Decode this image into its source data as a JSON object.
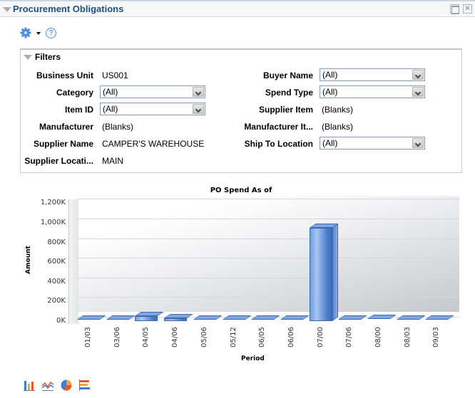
{
  "header": {
    "title": "Procurement Obligations",
    "maximize_icon": "maximize-icon",
    "close_icon": "close-icon"
  },
  "toolbar": {
    "gear_icon": "gear-icon",
    "dropdown_icon": "caret-down-icon",
    "help_label": "?"
  },
  "filters": {
    "title": "Filters",
    "left": [
      {
        "label": "Business Unit",
        "type": "text",
        "value": "US001"
      },
      {
        "label": "Category",
        "type": "select",
        "value": "(All)"
      },
      {
        "label": "Item ID",
        "type": "select",
        "value": "(All)"
      },
      {
        "label": "Manufacturer",
        "type": "text",
        "value": "(Blanks)"
      },
      {
        "label": "Supplier Name",
        "type": "text",
        "value": "CAMPER'S WAREHOUSE"
      },
      {
        "label": "Supplier Locati...",
        "type": "text",
        "value": "MAIN"
      }
    ],
    "right": [
      {
        "label": "Buyer Name",
        "type": "select",
        "value": "(All)"
      },
      {
        "label": "Spend Type",
        "type": "select",
        "value": "(All)"
      },
      {
        "label": "Supplier Item",
        "type": "text",
        "value": "(Blanks)"
      },
      {
        "label": "Manufacturer It...",
        "type": "text",
        "value": "(Blanks)"
      },
      {
        "label": "Ship To Location",
        "type": "select",
        "value": "(All)"
      }
    ]
  },
  "chart_data": {
    "type": "bar",
    "title": "PO Spend As of",
    "xlabel": "Period",
    "ylabel": "Amount",
    "categories": [
      "01/03",
      "03/06",
      "04/05",
      "04/06",
      "05/06",
      "05/12",
      "06/05",
      "06/06",
      "07/00",
      "07/06",
      "08/00",
      "08/03",
      "09/03"
    ],
    "values": [
      5,
      5,
      50,
      30,
      5,
      5,
      5,
      5,
      950,
      5,
      20,
      5,
      5
    ],
    "value_unit": "K",
    "yticks": [
      "0K",
      "200K",
      "400K",
      "600K",
      "800K",
      "1,000K",
      "1,200K"
    ],
    "ylim": [
      0,
      1200
    ],
    "grid": true,
    "legend": "none",
    "style": "3d-bar",
    "bar_color": "#5b8ad6"
  },
  "chart_types": [
    {
      "name": "bar-chart-icon"
    },
    {
      "name": "line-chart-icon"
    },
    {
      "name": "pie-chart-icon"
    },
    {
      "name": "horizontal-bar-chart-icon"
    }
  ]
}
